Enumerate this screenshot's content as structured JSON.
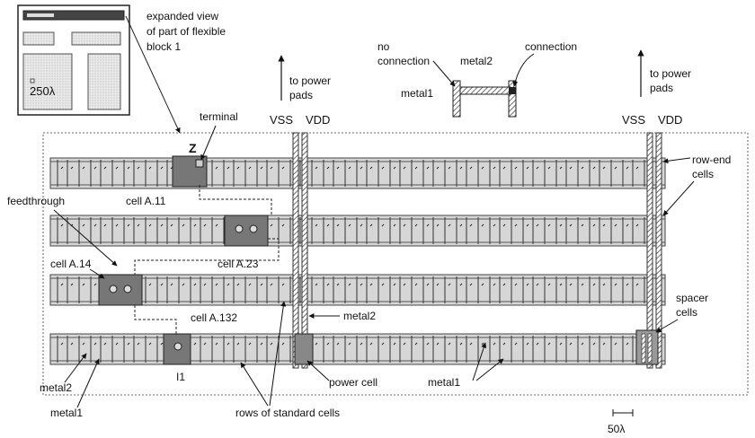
{
  "inset": {
    "scale_label": "250λ",
    "caption": [
      "expanded view",
      "of part of flexible",
      "block 1"
    ]
  },
  "labels": {
    "to_power_pads_left": [
      "to power",
      "pads"
    ],
    "to_power_pads_right": [
      "to power",
      "pads"
    ],
    "vss_left": "VSS",
    "vdd_left": "VDD",
    "vss_right": "VSS",
    "vdd_right": "VDD",
    "no_connection": [
      "no",
      "connection"
    ],
    "metal2_top": "metal2",
    "connection": "connection",
    "metal1_top": "metal1",
    "terminal": "terminal",
    "z": "Z",
    "row_end_cells": [
      "row-end",
      "cells"
    ],
    "feedthrough": "feedthrough",
    "cell_a11": "cell A.11",
    "cell_a23": "cell A.23",
    "cell_a14": "cell A.14",
    "spacer_cells": [
      "spacer",
      "cells"
    ],
    "cell_a132": "cell A.132",
    "metal2_mid": "metal2",
    "metal2_left": "metal2",
    "i1": "I1",
    "power_cell": "power cell",
    "metal1_right": "metal1",
    "metal1_left": "metal1",
    "rows_of_standard_cells": "rows of standard cells",
    "scale_bottom": "50λ"
  },
  "colors": {
    "row_fill": "#d6d6d6",
    "row_border": "#444444",
    "rail_fill": "#c8c8c8",
    "cell_dark": "#7a7a7a",
    "line": "#222222"
  }
}
